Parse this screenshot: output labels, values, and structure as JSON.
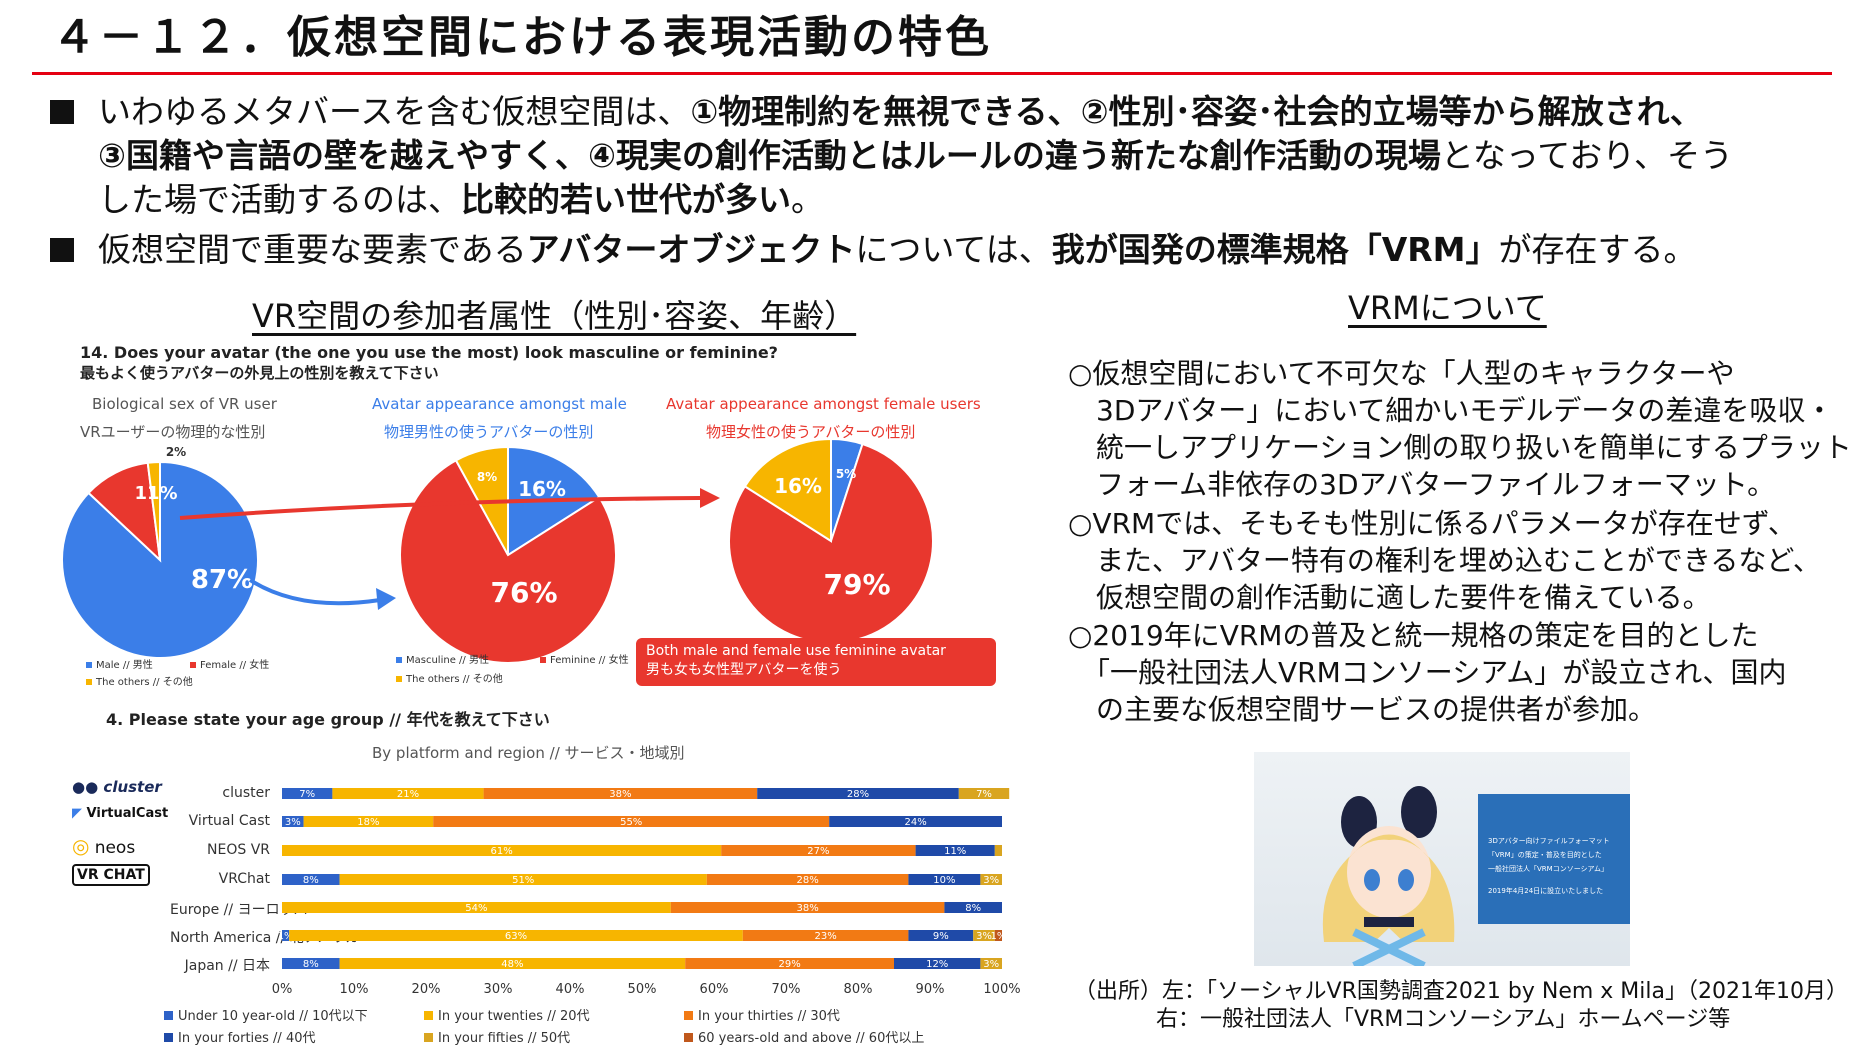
{
  "title": "４－１２．仮想空間における表現活動の特色",
  "bullets": [
    {
      "line1_a": "いわゆるメタバースを含む仮想空間は、",
      "line1_b": "①物理制約を無視できる、②性別･容姿･社会的立場等から解放され、",
      "line2_a": "③国籍や言語の壁を越えやすく、④現実の創作活動とはルールの違う新たな創作活動の現場",
      "line2_b": "となっており、そう",
      "line3_a": "した場で活動するのは、",
      "line3_b": "比較的若い世代が多い",
      "line3_c": "。"
    },
    {
      "line1_a": "仮想空間で重要な要素である",
      "line1_b": "アバターオブジェクト",
      "line1_c": "については、",
      "line1_d": "我が国発の標準規格「VRM」",
      "line1_e": "が存在する。"
    }
  ],
  "left_section": {
    "title": "VR空間の参加者属性（性別･容姿、年齢）",
    "q14_en": "14. Does your avatar (the one you use the most) look masculine or feminine?",
    "q14_jp": "最もよく使うアバターの外見上の性別を教えて下さい",
    "q4": "4. Please state your age group // 年代を教えて下さい",
    "q4_sub": "By platform and region // サービス・地域別"
  },
  "pies": [
    {
      "title_en": "Biological sex of VR user",
      "title_jp": "VRユーザーの物理的な性別",
      "colors": [
        "#3b7ee8",
        "#e8372e",
        "#f7b500"
      ],
      "slices": [
        {
          "label": "87%",
          "value": 87
        },
        {
          "label": "11%",
          "value": 11
        },
        {
          "label": "2%",
          "value": 2
        }
      ],
      "legend": [
        "Male // 男性",
        "Female // 女性",
        "The others // その他"
      ]
    },
    {
      "title_en": "Avatar appearance amongst male",
      "title_jp": "物理男性の使うアバターの性別",
      "colors": [
        "#3b7ee8",
        "#e8372e",
        "#f7b500"
      ],
      "slices": [
        {
          "label": "16%",
          "value": 16
        },
        {
          "label": "76%",
          "value": 76
        },
        {
          "label": "8%",
          "value": 8
        }
      ],
      "legend": [
        "Masculine // 男性",
        "Feminine // 女性",
        "The others // その他"
      ]
    },
    {
      "title_en": "Avatar appearance amongst female users",
      "title_jp": "物理女性の使うアバターの性別",
      "colors": [
        "#3b7ee8",
        "#e8372e",
        "#f7b500"
      ],
      "slices": [
        {
          "label": "5%",
          "value": 5
        },
        {
          "label": "79%",
          "value": 79
        },
        {
          "label": "16%",
          "value": 16
        }
      ]
    }
  ],
  "callout": {
    "en": "Both male and female use feminine avatar",
    "jp": "男も女も女性型アバターを使う"
  },
  "chart_data": {
    "type": "bar",
    "subtype": "stacked-100",
    "categories": [
      "cluster",
      "Virtual Cast",
      "NEOS VR",
      "VRChat",
      "Europe // ヨーロッパ",
      "North America // 北アメリカ",
      "Japan // 日本"
    ],
    "logos": [
      "cluster",
      "VirtualCast",
      "neos",
      "VR CHAT",
      "",
      "",
      ""
    ],
    "series": [
      {
        "name": "Under 10 year-old // 10代以下",
        "color": "#2e62c8",
        "values": [
          7,
          3,
          0,
          8,
          0,
          1,
          8
        ],
        "labels": [
          "7%",
          "3%",
          "",
          "8%",
          "",
          "1%",
          "8%"
        ]
      },
      {
        "name": "In your twenties // 20代",
        "color": "#f7b500",
        "values": [
          21,
          18,
          61,
          51,
          54,
          63,
          48
        ],
        "labels": [
          "21%",
          "18%",
          "61%",
          "51%",
          "54%",
          "63%",
          "48%"
        ]
      },
      {
        "name": "In your thirties // 30代",
        "color": "#f27a14",
        "values": [
          38,
          55,
          27,
          28,
          38,
          23,
          29
        ],
        "labels": [
          "38%",
          "55%",
          "27%",
          "28%",
          "38%",
          "23%",
          "29%"
        ]
      },
      {
        "name": "In your forties // 40代",
        "color": "#1f4aa8",
        "values": [
          28,
          24,
          11,
          10,
          8,
          9,
          12
        ],
        "labels": [
          "28%",
          "24%",
          "11%",
          "10%",
          "8%",
          "9%",
          "12%"
        ]
      },
      {
        "name": "In your fifties // 50代",
        "color": "#d9a520",
        "values": [
          7,
          0,
          1,
          3,
          0,
          3,
          3
        ],
        "labels": [
          "7%",
          "",
          "",
          "3%",
          "",
          "3%",
          "3%"
        ]
      },
      {
        "name": "60 years-old and above // 60代以上",
        "color": "#c0581c",
        "values": [
          0,
          0,
          0,
          0,
          0,
          1,
          0
        ],
        "labels": [
          "",
          "",
          "",
          "",
          "",
          "1%",
          ""
        ]
      }
    ],
    "x_ticks": [
      "0%",
      "10%",
      "20%",
      "30%",
      "40%",
      "50%",
      "60%",
      "70%",
      "80%",
      "90%",
      "100%"
    ],
    "xlim": [
      0,
      100
    ],
    "legend_position": "bottom"
  },
  "right_section": {
    "title": "VRMについて",
    "lines": [
      "○仮想空間において不可欠な「人型のキャラクターや",
      "　3Dアバター」において細かいモデルデータの差違を吸収・",
      "　統一しアプリケーション側の取り扱いを簡単にするプラット",
      "　フォーム非依存の3Dアバターファイルフォーマット。",
      "○VRMでは、そもそも性別に係るパラメータが存在せず、",
      "　また、アバター特有の権利を埋め込むことができるなど、",
      "　仮想空間の創作活動に適した要件を備えている。",
      "○2019年にVRMの普及と統一規格の策定を目的とした",
      "　「一般社団法人VRMコンソーシアム」が設立され、国内",
      "　の主要な仮想空間サービスの提供者が参加。"
    ],
    "panel_lines": [
      "3Dアバター向けファイルフォーマット",
      "「VRM」の策定・普及を目的とした",
      "一般社団法人「VRMコンソーシアム」",
      "2019年4月24日に設立いたしました"
    ]
  },
  "source": {
    "line1": "（出所）左：「ソーシャルVR国勢調査2021 by Nem x Mila」（2021年10月）",
    "line2": "右：一般社団法人「VRMコンソーシアム」ホームページ等"
  }
}
